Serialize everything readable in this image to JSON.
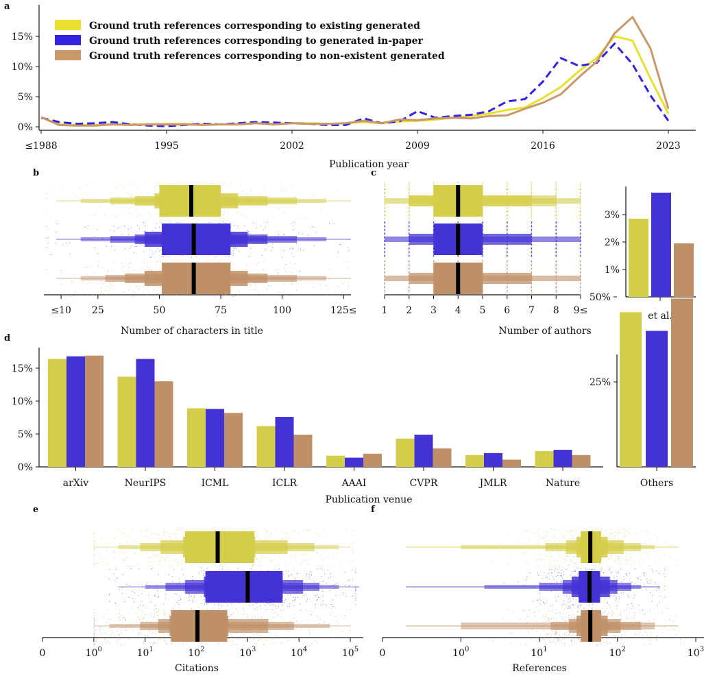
{
  "colors": {
    "existing": "#d4cd4a",
    "inpaper": "#4433d4",
    "nonexistent": "#bf9068",
    "line_existing": "#e8df2e",
    "line_inpaper": "#3322e0",
    "line_nonexistent": "#c89868"
  },
  "chart_data": [
    {
      "panel": "a",
      "type": "line",
      "xlabel": "Publication year",
      "ylabel": "",
      "xlim": [
        1988,
        2024
      ],
      "ylim": [
        0,
        19
      ],
      "xticks": [
        {
          "v": 1988,
          "label": "≤1988"
        },
        {
          "v": 1995,
          "label": "1995"
        },
        {
          "v": 2002,
          "label": "2002"
        },
        {
          "v": 2009,
          "label": "2009"
        },
        {
          "v": 2016,
          "label": "2016"
        },
        {
          "v": 2023,
          "label": "2023"
        }
      ],
      "yticks": [
        {
          "v": 0,
          "label": "0%"
        },
        {
          "v": 5,
          "label": "5%"
        },
        {
          "v": 10,
          "label": "10%"
        },
        {
          "v": 15,
          "label": "15%"
        }
      ],
      "legend_position": "top-left",
      "x": [
        1988,
        1989,
        1990,
        1991,
        1992,
        1993,
        1994,
        1995,
        1996,
        1997,
        1998,
        1999,
        2000,
        2001,
        2002,
        2003,
        2004,
        2005,
        2006,
        2007,
        2008,
        2009,
        2010,
        2011,
        2012,
        2013,
        2014,
        2015,
        2016,
        2017,
        2018,
        2019,
        2020,
        2021,
        2022,
        2023
      ],
      "series": [
        {
          "key": "existing",
          "name": "Ground truth references corresponding to existing generated",
          "dashed": false,
          "values": [
            1.6,
            0.4,
            0.3,
            0.3,
            0.5,
            0.4,
            0.4,
            0.5,
            0.5,
            0.4,
            0.4,
            0.5,
            0.6,
            0.5,
            0.6,
            0.6,
            0.5,
            0.6,
            0.8,
            0.6,
            0.9,
            1.0,
            1.2,
            1.5,
            1.8,
            2.2,
            2.8,
            3.2,
            4.8,
            6.6,
            9.2,
            11.4,
            15.0,
            14.3,
            8.0,
            2.2
          ]
        },
        {
          "key": "inpaper",
          "name": "Ground truth references corresponding to generated in-paper",
          "dashed": true,
          "values": [
            1.5,
            0.8,
            0.5,
            0.6,
            0.8,
            0.4,
            0.2,
            0.1,
            0.3,
            0.5,
            0.4,
            0.6,
            0.8,
            0.7,
            0.6,
            0.5,
            0.3,
            0.3,
            1.4,
            0.6,
            0.9,
            2.6,
            1.5,
            1.8,
            2.0,
            2.6,
            4.2,
            4.6,
            7.5,
            11.4,
            10.1,
            10.6,
            13.8,
            10.4,
            5.2,
            1.0
          ]
        },
        {
          "key": "nonexistent",
          "name": "Ground truth references corresponding to non-existent generated",
          "dashed": false,
          "values": [
            1.6,
            0.3,
            0.2,
            0.2,
            0.4,
            0.3,
            0.4,
            0.4,
            0.4,
            0.3,
            0.4,
            0.4,
            0.6,
            0.4,
            0.6,
            0.5,
            0.5,
            0.6,
            1.0,
            0.6,
            1.2,
            1.1,
            1.4,
            1.5,
            1.4,
            1.8,
            1.9,
            3.0,
            4.0,
            5.4,
            8.2,
            10.8,
            15.5,
            18.2,
            13.0,
            3.0
          ]
        }
      ]
    },
    {
      "panel": "b",
      "type": "boxen",
      "xlabel": "Number of characters in title",
      "xticks": [
        {
          "v": 10,
          "label": "≤10"
        },
        {
          "v": 25,
          "label": "25"
        },
        {
          "v": 50,
          "label": "50"
        },
        {
          "v": 75,
          "label": "75"
        },
        {
          "v": 100,
          "label": "100"
        },
        {
          "v": 125,
          "label": "125≤"
        }
      ],
      "xlim": [
        3,
        128
      ],
      "series": [
        {
          "key": "existing",
          "median": 63
        },
        {
          "key": "inpaper",
          "median": 64
        },
        {
          "key": "nonexistent",
          "median": 64
        }
      ]
    },
    {
      "panel": "c",
      "type": "boxen",
      "xlabel": "Number of authors",
      "xticks": [
        {
          "v": 1,
          "label": "1"
        },
        {
          "v": 2,
          "label": "2"
        },
        {
          "v": 3,
          "label": "3"
        },
        {
          "v": 4,
          "label": "4"
        },
        {
          "v": 5,
          "label": "5"
        },
        {
          "v": 6,
          "label": "6"
        },
        {
          "v": 7,
          "label": "7"
        },
        {
          "v": 8,
          "label": "8"
        },
        {
          "v": 9,
          "label": "9≤"
        }
      ],
      "series": [
        {
          "key": "existing",
          "median": 4
        },
        {
          "key": "inpaper",
          "median": 4
        },
        {
          "key": "nonexistent",
          "median": 4
        }
      ],
      "inset": {
        "type": "bar",
        "categories": [
          "et al."
        ],
        "yticks": [
          {
            "v": 1,
            "label": "1%"
          },
          {
            "v": 2,
            "label": "2%"
          },
          {
            "v": 3,
            "label": "3%"
          }
        ],
        "ylim": [
          0,
          4
        ],
        "values": [
          2.85,
          3.8,
          1.95
        ]
      }
    },
    {
      "panel": "d",
      "type": "bar",
      "xlabel": "Publication venue",
      "categories": [
        "arXiv",
        "NeurIPS",
        "ICML",
        "ICLR",
        "AAAI",
        "CVPR",
        "JMLR",
        "Nature"
      ],
      "yticks": [
        {
          "v": 0,
          "label": "0%"
        },
        {
          "v": 5,
          "label": "5%"
        },
        {
          "v": 10,
          "label": "10%"
        },
        {
          "v": 15,
          "label": "15%"
        }
      ],
      "ylim": [
        0,
        17.5
      ],
      "series": [
        {
          "key": "existing",
          "values": [
            16.4,
            13.7,
            8.9,
            6.2,
            1.7,
            4.3,
            1.8,
            2.4
          ]
        },
        {
          "key": "inpaper",
          "values": [
            16.8,
            16.4,
            8.8,
            7.6,
            1.4,
            4.9,
            2.1,
            2.6
          ]
        },
        {
          "key": "nonexistent",
          "values": [
            16.9,
            13.0,
            8.2,
            4.9,
            2.0,
            2.8,
            1.1,
            1.8
          ]
        }
      ],
      "inset": {
        "type": "bar",
        "categories": [
          "Others"
        ],
        "yticks": [
          {
            "v": 25,
            "label": "25%"
          },
          {
            "v": 50,
            "label": "50%"
          }
        ],
        "ylim": [
          0,
          55
        ],
        "values": [
          45.5,
          40.0,
          49.5
        ]
      }
    },
    {
      "panel": "e",
      "type": "boxen",
      "scale": "symlog",
      "xlabel": "Citations",
      "xticks": [
        {
          "v": 0,
          "label": "0",
          "exp": ""
        },
        {
          "v": 1,
          "label": "10",
          "exp": "0"
        },
        {
          "v": 10,
          "label": "10",
          "exp": "1"
        },
        {
          "v": 100,
          "label": "10",
          "exp": "2"
        },
        {
          "v": 1000,
          "label": "10",
          "exp": "3"
        },
        {
          "v": 10000,
          "label": "10",
          "exp": "4"
        },
        {
          "v": 100000,
          "label": "10",
          "exp": "5"
        }
      ],
      "series": [
        {
          "key": "existing",
          "median": 260
        },
        {
          "key": "inpaper",
          "median": 1000
        },
        {
          "key": "nonexistent",
          "median": 105
        }
      ]
    },
    {
      "panel": "f",
      "type": "boxen",
      "scale": "symlog",
      "xlabel": "References",
      "xticks": [
        {
          "v": 0,
          "label": "0",
          "exp": ""
        },
        {
          "v": 1,
          "label": "10",
          "exp": "0"
        },
        {
          "v": 10,
          "label": "10",
          "exp": "1"
        },
        {
          "v": 100,
          "label": "10",
          "exp": "2"
        },
        {
          "v": 1000,
          "label": "10",
          "exp": "3"
        }
      ],
      "series": [
        {
          "key": "existing",
          "median": 45
        },
        {
          "key": "inpaper",
          "median": 44
        },
        {
          "key": "nonexistent",
          "median": 45
        }
      ]
    }
  ]
}
